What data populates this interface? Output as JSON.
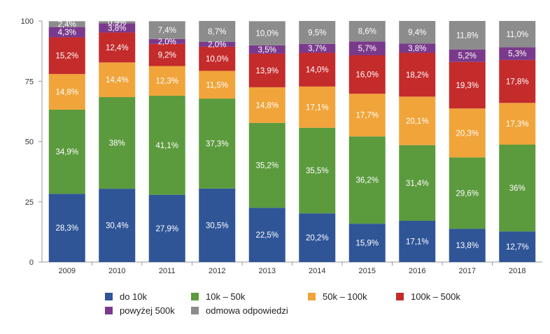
{
  "chart_data": {
    "type": "bar",
    "stacked": true,
    "categories": [
      "2009",
      "2010",
      "2011",
      "2012",
      "2013",
      "2014",
      "2015",
      "2016",
      "2017",
      "2018"
    ],
    "ylim": [
      0,
      100
    ],
    "yticks": [
      0,
      25,
      50,
      75,
      100
    ],
    "grid": false,
    "legend_position": "bottom",
    "series": [
      {
        "name": "do 10k",
        "color": "#2f5597",
        "values": [
          28.3,
          30.4,
          27.9,
          30.5,
          22.5,
          20.2,
          15.9,
          17.1,
          13.8,
          12.7
        ],
        "labels": [
          "28,3%",
          "30,4%",
          "27,9%",
          "30,5%",
          "22,5%",
          "20,2%",
          "15,9%",
          "17,1%",
          "13,8%",
          "12,7%"
        ]
      },
      {
        "name": "10k – 50k",
        "color": "#5c9a3e",
        "values": [
          34.9,
          38,
          41.1,
          37.3,
          35.2,
          35.5,
          36.2,
          31.4,
          29.6,
          36
        ],
        "labels": [
          "34,9%",
          "38%",
          "41,1%",
          "37,3%",
          "35,2%",
          "35,5%",
          "36,2%",
          "31,4%",
          "29,6%",
          "36%"
        ]
      },
      {
        "name": "50k – 100k",
        "color": "#f0a43a",
        "values": [
          14.8,
          14.4,
          12.3,
          11.5,
          14.8,
          17.1,
          17.7,
          20.1,
          20.3,
          17.3
        ],
        "labels": [
          "14,8%",
          "14,4%",
          "12,3%",
          "11,5%",
          "14,8%",
          "17,1%",
          "17,7%",
          "20,1%",
          "20,3%",
          "17,3%"
        ]
      },
      {
        "name": "100k – 500k",
        "color": "#c42b2b",
        "values": [
          15.2,
          12.4,
          9.2,
          10.0,
          13.9,
          14.0,
          16.0,
          18.2,
          19.3,
          17.8
        ],
        "labels": [
          "15,2%",
          "12,4%",
          "9,2%",
          "10,0%",
          "13,9%",
          "14,0%",
          "16,0%",
          "18,2%",
          "19,3%",
          "17,8%"
        ]
      },
      {
        "name": "powyżej 500k",
        "color": "#7a3a8c",
        "values": [
          4.3,
          3.8,
          2.0,
          2.0,
          3.5,
          3.7,
          5.7,
          3.8,
          5.2,
          5.3
        ],
        "labels": [
          "4,3%",
          "3,8%",
          "2,0%",
          "2,0%",
          "3,5%",
          "3,7%",
          "5,7%",
          "3,8%",
          "5,2%",
          "5,3%"
        ]
      },
      {
        "name": "odmowa odpowiedzi",
        "color": "#8c8c8c",
        "values": [
          2.4,
          0.9,
          7.4,
          8.7,
          10.0,
          9.5,
          8.6,
          9.4,
          11.8,
          11.0
        ],
        "labels": [
          "2,4%",
          "0,9%",
          "7,4%",
          "8,7%",
          "10,0%",
          "9,5%",
          "8,6%",
          "9,4%",
          "11,8%",
          "11,0%"
        ]
      }
    ]
  }
}
